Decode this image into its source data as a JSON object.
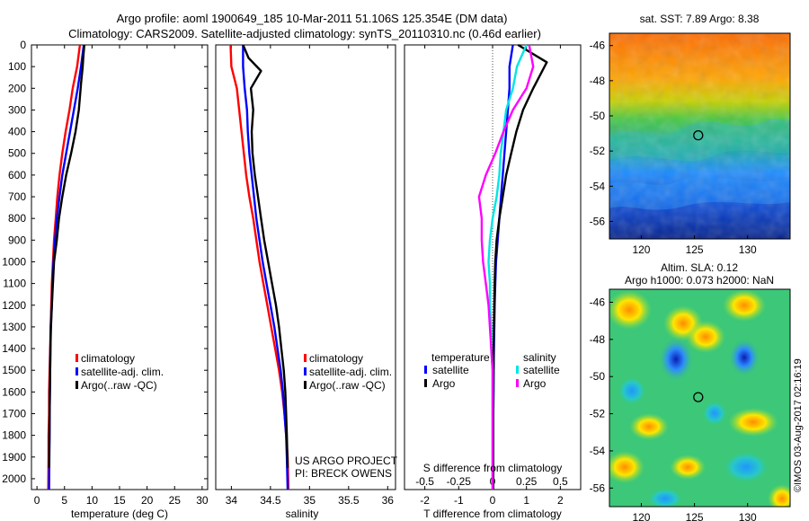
{
  "header": {
    "line1": "Argo profile: aoml 1900649_185 10-Mar-2011 51.106S 125.354E (DM data)",
    "line2": "Climatology: CARS2009. Satellite-adjusted climatology: synTS_20110310.nc (0.46d earlier)"
  },
  "colors": {
    "climatology": "#ff0000",
    "satellite": "#0000ff",
    "argo": "#000000",
    "argo_salinity": "#ff00ff",
    "satellite_salinity": "#00e5e5"
  },
  "depth_axis": {
    "ticks": [
      "0",
      "100",
      "200",
      "300",
      "400",
      "500",
      "600",
      "700",
      "800",
      "900",
      "1000",
      "1100",
      "1200",
      "1300",
      "1400",
      "1500",
      "1600",
      "1700",
      "1800",
      "1900",
      "2000"
    ]
  },
  "credit": {
    "line1": "US ARGO PROJECT",
    "line2": "PI: BRECK OWENS"
  },
  "watermark": "©IMOS 03-Aug-2017 02:16:19",
  "chart_data": [
    {
      "type": "line",
      "xlabel": "temperature (deg C)",
      "xlim": [
        -1,
        31
      ],
      "xticks": [
        "0",
        "5",
        "10",
        "15",
        "20",
        "25",
        "30"
      ],
      "ylim": [
        2050,
        0
      ],
      "legend": [
        "climatology",
        "satellite-adj. clim.",
        "Argo(..raw -QC)"
      ],
      "series": [
        {
          "name": "climatology",
          "color": "#ff0000",
          "x": [
            7.8,
            7.3,
            6.5,
            5.9,
            5.2,
            4.6,
            4.1,
            3.7,
            3.4,
            3.1,
            2.9,
            2.7,
            2.6,
            2.5,
            2.4,
            2.3,
            2.2,
            2.2,
            2.1,
            2.1,
            2.05
          ],
          "y": [
            0,
            100,
            200,
            300,
            400,
            500,
            600,
            700,
            800,
            900,
            1000,
            1100,
            1200,
            1300,
            1400,
            1500,
            1600,
            1700,
            1800,
            1900,
            2050
          ]
        },
        {
          "name": "satellite-adj. clim.",
          "color": "#0000ff",
          "x": [
            8.5,
            8.0,
            7.4,
            6.7,
            6.0,
            5.3,
            4.6,
            4.1,
            3.6,
            3.3,
            3.0,
            2.8,
            2.7,
            2.5,
            2.45,
            2.4,
            2.35,
            2.3,
            2.3,
            2.25,
            2.2
          ],
          "y": [
            0,
            100,
            200,
            300,
            400,
            500,
            600,
            700,
            800,
            900,
            1000,
            1100,
            1200,
            1300,
            1400,
            1500,
            1600,
            1700,
            1800,
            1900,
            2050
          ]
        },
        {
          "name": "Argo(..raw -QC)",
          "color": "#000000",
          "x": [
            8.6,
            8.4,
            8.3,
            8.0,
            7.6,
            7.0,
            6.2,
            5.3,
            4.6,
            4.0,
            3.6,
            3.1,
            2.9,
            2.7,
            2.55,
            2.45,
            2.4,
            2.35,
            2.3,
            2.25,
            2.2
          ],
          "y": [
            0,
            60,
            100,
            180,
            300,
            400,
            500,
            600,
            700,
            800,
            900,
            1000,
            1100,
            1200,
            1300,
            1400,
            1500,
            1600,
            1700,
            1800,
            1950
          ]
        }
      ]
    },
    {
      "type": "line",
      "xlabel": "salinity",
      "xlim": [
        33.8,
        36.1
      ],
      "xticks": [
        "34",
        "34.5",
        "35",
        "35.5",
        "36"
      ],
      "ylim": [
        2050,
        0
      ],
      "legend": [
        "climatology",
        "satellite-adj. clim.",
        "Argo(..raw -QC)"
      ],
      "series": [
        {
          "name": "climatology",
          "color": "#ff0000",
          "x": [
            33.99,
            34.0,
            34.07,
            34.1,
            34.13,
            34.16,
            34.19,
            34.23,
            34.28,
            34.32,
            34.36,
            34.41,
            34.46,
            34.51,
            34.56,
            34.61,
            34.65,
            34.68,
            34.7,
            34.72,
            34.73
          ],
          "y": [
            0,
            100,
            200,
            300,
            400,
            500,
            600,
            700,
            800,
            900,
            1000,
            1100,
            1200,
            1300,
            1400,
            1500,
            1600,
            1700,
            1800,
            1900,
            2050
          ]
        },
        {
          "name": "satellite-adj. clim.",
          "color": "#0000ff",
          "x": [
            34.15,
            34.15,
            34.17,
            34.2,
            34.21,
            34.23,
            34.26,
            34.29,
            34.32,
            34.36,
            34.4,
            34.45,
            34.5,
            34.55,
            34.59,
            34.63,
            34.66,
            34.68,
            34.7,
            34.71,
            34.72
          ],
          "y": [
            0,
            100,
            200,
            300,
            400,
            500,
            600,
            700,
            800,
            900,
            1000,
            1100,
            1200,
            1300,
            1400,
            1500,
            1600,
            1700,
            1800,
            1900,
            2050
          ]
        },
        {
          "name": "Argo(..raw -QC)",
          "color": "#000000",
          "x": [
            34.15,
            34.22,
            34.38,
            34.25,
            34.28,
            34.26,
            34.27,
            34.3,
            34.34,
            34.38,
            34.42,
            34.47,
            34.52,
            34.57,
            34.61,
            34.64,
            34.67,
            34.69,
            34.7,
            34.71,
            34.72
          ],
          "y": [
            0,
            60,
            120,
            200,
            300,
            400,
            500,
            600,
            700,
            800,
            900,
            1000,
            1100,
            1200,
            1300,
            1400,
            1500,
            1600,
            1700,
            1800,
            1950
          ]
        }
      ]
    },
    {
      "type": "line",
      "xlabel": "T difference from climatology",
      "xlabel_top": "S difference from climatology",
      "xlim": [
        -2.6,
        2.6
      ],
      "xticks": [
        "-2",
        "-1",
        "0",
        "1",
        "2"
      ],
      "xticks_top": [
        "-0.5",
        "-0.25",
        "0",
        "0.25",
        "0.5"
      ],
      "ylim": [
        2050,
        0
      ],
      "legend_titles": [
        "temperature",
        "salinity"
      ],
      "legend": [
        "satellite",
        "Argo",
        "satellite",
        "Argo"
      ],
      "series": [
        {
          "name": "satellite",
          "group": "temperature",
          "color": "#0000ff",
          "x": [
            0.6,
            0.5,
            0.5,
            0.45,
            0.4,
            0.35,
            0.3,
            0.25,
            0.2,
            0.15,
            0.1,
            0.08,
            0.06,
            0.05,
            0.04,
            0.03,
            0.03,
            0.02,
            0.02,
            0.02,
            0.02
          ],
          "y": [
            0,
            100,
            200,
            300,
            400,
            500,
            600,
            700,
            800,
            900,
            1000,
            1100,
            1200,
            1300,
            1400,
            1500,
            1600,
            1700,
            1800,
            1900,
            2050
          ]
        },
        {
          "name": "Argo",
          "group": "temperature",
          "color": "#000000",
          "x": [
            0.75,
            1.6,
            1.2,
            0.9,
            0.7,
            0.55,
            0.4,
            0.3,
            0.2,
            0.12,
            0.08,
            0.06,
            0.05,
            0.04,
            0.03,
            0.03,
            0.02,
            0.02,
            0.02,
            0.02,
            0.02
          ],
          "y": [
            0,
            80,
            200,
            300,
            400,
            500,
            600,
            700,
            800,
            900,
            1000,
            1100,
            1200,
            1300,
            1400,
            1500,
            1600,
            1700,
            1800,
            1900,
            2050
          ]
        },
        {
          "name": "satellite",
          "group": "salinity",
          "color": "#00e5e5",
          "x": [
            0.25,
            0.18,
            0.15,
            0.1,
            0.08,
            0.06,
            0.05,
            0.03,
            0.0,
            -0.02,
            -0.03,
            -0.02,
            -0.02,
            -0.01,
            -0.01,
            0.0,
            0.0,
            0.0,
            0.0,
            0.0,
            0.0
          ],
          "y": [
            0,
            100,
            200,
            300,
            400,
            500,
            600,
            700,
            800,
            900,
            1000,
            1100,
            1200,
            1300,
            1400,
            1500,
            1600,
            1700,
            1800,
            1900,
            2050
          ]
        },
        {
          "name": "Argo",
          "group": "salinity",
          "color": "#ff00ff",
          "x": [
            0.27,
            0.3,
            0.25,
            0.15,
            0.08,
            0.02,
            -0.05,
            -0.1,
            -0.08,
            -0.08,
            -0.07,
            -0.05,
            -0.03,
            -0.02,
            -0.01,
            0.0,
            0.0,
            0.0,
            0.0,
            0.0,
            0.0
          ],
          "y": [
            0,
            100,
            200,
            300,
            400,
            500,
            600,
            700,
            800,
            900,
            1000,
            1100,
            1200,
            1300,
            1400,
            1500,
            1600,
            1700,
            1800,
            1900,
            2050
          ]
        }
      ]
    },
    {
      "type": "heatmap",
      "title": "sat. SST: 7.89 Argo: 8.38",
      "xticks": [
        "120",
        "125",
        "130"
      ],
      "yticks": [
        "-46",
        "-48",
        "-50",
        "-52",
        "-54",
        "-56"
      ],
      "xlim": [
        117,
        134
      ],
      "ylim": [
        -57,
        -45.3
      ],
      "marker": {
        "lon": 125.354,
        "lat": -51.106
      }
    },
    {
      "type": "heatmap",
      "title": "Altim. SLA: 0.12",
      "subtitle": "Argo h1000: 0.073 h2000: NaN",
      "xticks": [
        "120",
        "125",
        "130"
      ],
      "yticks": [
        "-46",
        "-48",
        "-50",
        "-52",
        "-54",
        "-56"
      ],
      "xlim": [
        117,
        134
      ],
      "ylim": [
        -57,
        -45.3
      ],
      "marker": {
        "lon": 125.354,
        "lat": -51.106
      }
    }
  ]
}
